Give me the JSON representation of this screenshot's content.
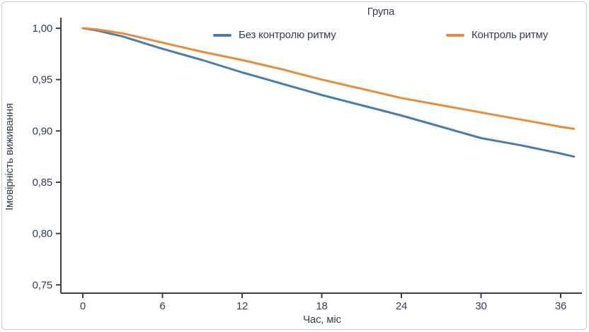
{
  "chart_data": {
    "type": "line",
    "legend_title": "Група",
    "xlabel": "Час, міс",
    "ylabel": "Імовірність виживання",
    "xlim": [
      0,
      37.5
    ],
    "ylim": [
      0.75,
      1.0
    ],
    "xticks": [
      0,
      6,
      12,
      18,
      24,
      30,
      36
    ],
    "xtick_labels": [
      "0",
      "6",
      "12",
      "18",
      "24",
      "30",
      "36"
    ],
    "yticks": [
      0.75,
      0.8,
      0.85,
      0.9,
      0.95,
      1.0
    ],
    "ytick_labels": [
      "0,75",
      "0,80",
      "0,85",
      "0,90",
      "0,95",
      "1,00"
    ],
    "grid": false,
    "legend_position": "top",
    "x": [
      0,
      1,
      2,
      3,
      4,
      5,
      6,
      9,
      12,
      15,
      18,
      21,
      24,
      27,
      30,
      33,
      36,
      37
    ],
    "series": [
      {
        "name": "Без контролю ритму",
        "color": "#4b7da9",
        "values": [
          1.0,
          0.998,
          0.995,
          0.992,
          0.988,
          0.984,
          0.98,
          0.969,
          0.957,
          0.946,
          0.935,
          0.925,
          0.915,
          0.904,
          0.893,
          0.886,
          0.878,
          0.875
        ]
      },
      {
        "name": "Контроль ритму",
        "color": "#e78b3d",
        "values": [
          1.0,
          0.999,
          0.997,
          0.995,
          0.992,
          0.989,
          0.986,
          0.977,
          0.969,
          0.96,
          0.95,
          0.941,
          0.932,
          0.925,
          0.918,
          0.911,
          0.904,
          0.902
        ]
      }
    ],
    "colors": {
      "axis": "#3c4147",
      "text": "#333f52",
      "frame_border": "#c9cacc"
    }
  }
}
